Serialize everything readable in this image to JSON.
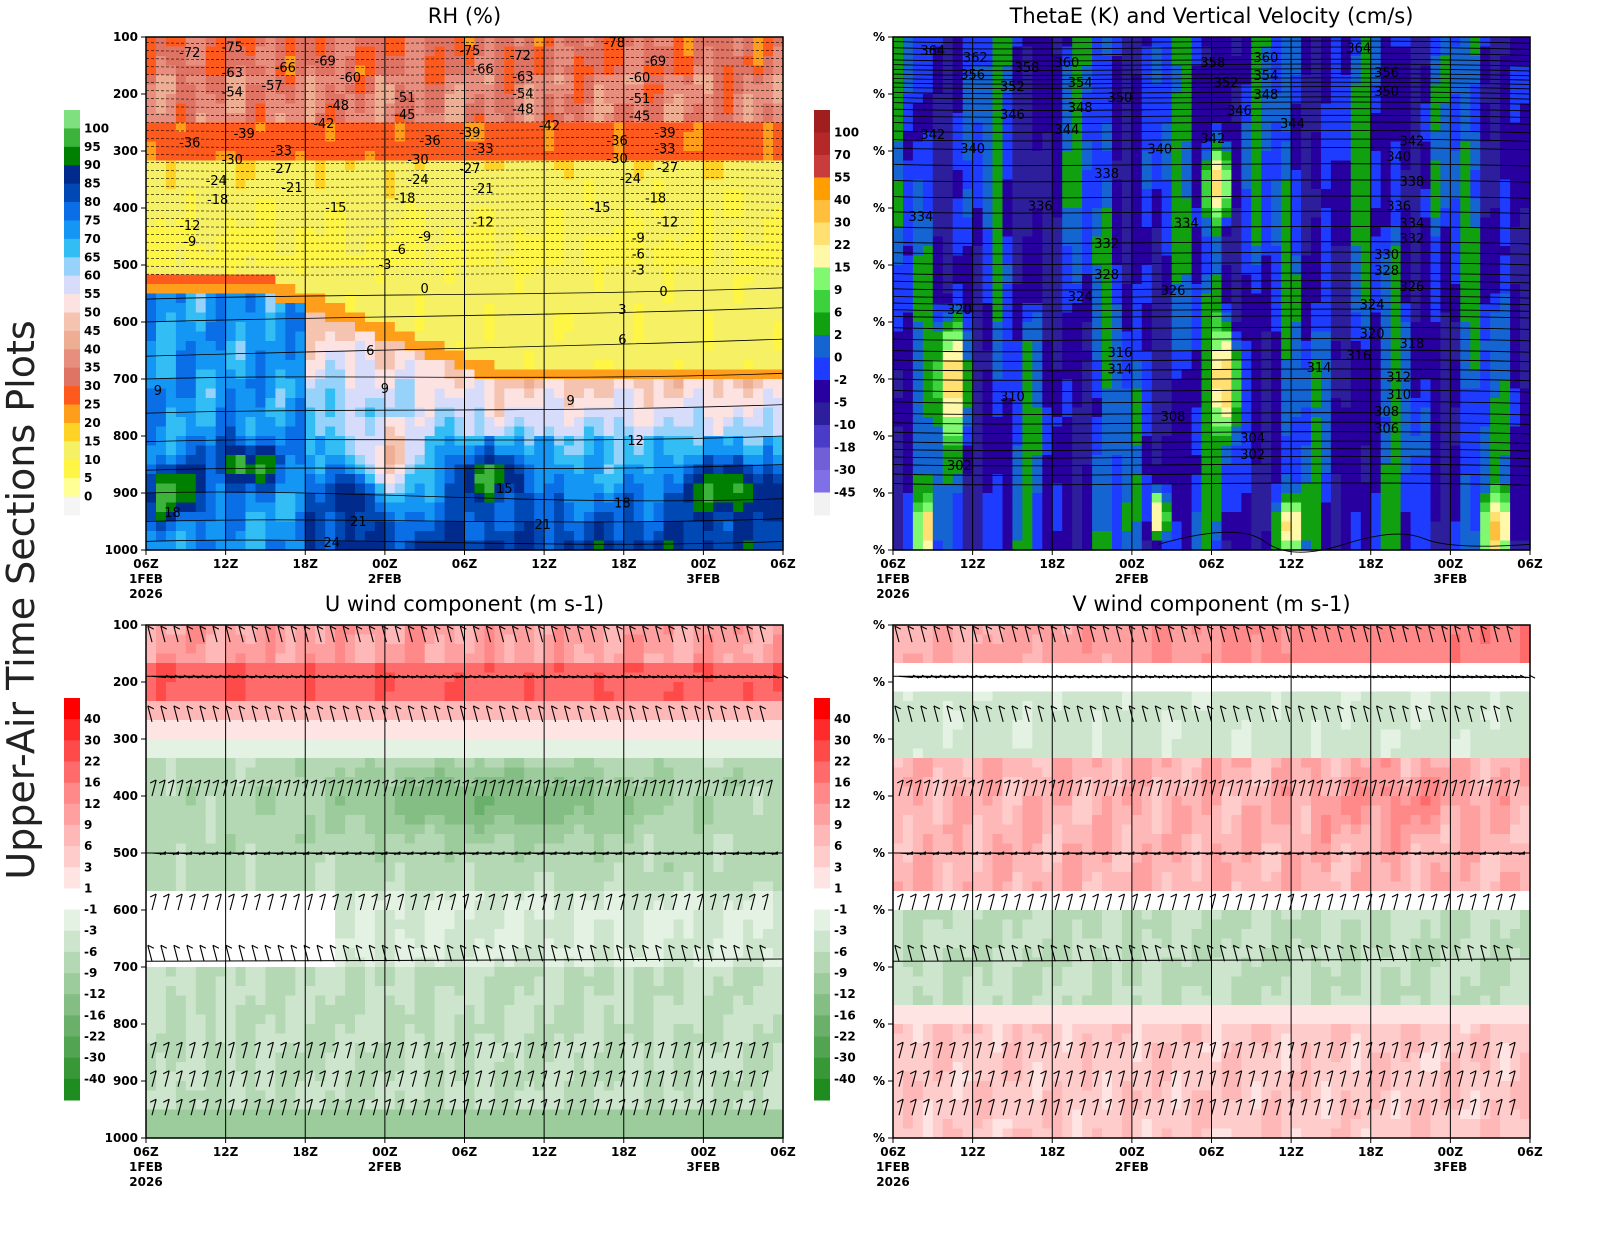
{
  "page_title": "Upper-Air Time Sections Plots",
  "chart_data": [
    {
      "id": "rh",
      "type": "heatmap",
      "title": "RH (%)",
      "ylabel": "",
      "xlabel": "",
      "y_axis": {
        "range": [
          100,
          1000
        ],
        "ticks": [
          "100",
          "200",
          "300",
          "400",
          "500",
          "600",
          "700",
          "800",
          "900",
          "1000"
        ],
        "inverted": true
      },
      "x_axis": {
        "range_hours": [
          0,
          48
        ],
        "ticks": [
          [
            "06Z",
            "1FEB",
            "2026"
          ],
          [
            "12Z"
          ],
          [
            "18Z"
          ],
          [
            "00Z",
            "2FEB"
          ],
          [
            "06Z"
          ],
          [
            "12Z"
          ],
          [
            "18Z"
          ],
          [
            "00Z",
            "3FEB"
          ],
          [
            "06Z"
          ]
        ]
      },
      "colorbar": {
        "labels": [
          "100",
          "95",
          "90",
          "85",
          "80",
          "75",
          "70",
          "65",
          "60",
          "55",
          "50",
          "45",
          "40",
          "35",
          "30",
          "25",
          "20",
          "15",
          "10",
          "5",
          "0"
        ],
        "colors": [
          "#7ee07e",
          "#3cb43c",
          "#008000",
          "#002a8c",
          "#0048b4",
          "#0a6ee6",
          "#1496f5",
          "#32bef5",
          "#96d2fa",
          "#d7dcfa",
          "#fde2e2",
          "#f5c4b0",
          "#edae94",
          "#e88e7e",
          "#e07464",
          "#ff5a1e",
          "#ff9e1a",
          "#ffd226",
          "#f5f064",
          "#fff544",
          "#ffff96",
          "#f5f5f5"
        ]
      },
      "contour_labels": [
        [
          3.3,
          126,
          "-72"
        ],
        [
          6.5,
          117,
          "-75"
        ],
        [
          10.5,
          153,
          "-66"
        ],
        [
          13.5,
          141,
          "-69"
        ],
        [
          6.5,
          161,
          "-63"
        ],
        [
          9.5,
          184,
          "-57"
        ],
        [
          6.5,
          196,
          "-54"
        ],
        [
          15.4,
          170,
          "-60"
        ],
        [
          14.5,
          219,
          "-48"
        ],
        [
          13.4,
          251,
          "-42"
        ],
        [
          19.5,
          205,
          "-51"
        ],
        [
          19.5,
          235,
          "-45"
        ],
        [
          24.4,
          123,
          "-75"
        ],
        [
          28.2,
          132,
          "-72"
        ],
        [
          25.4,
          155,
          "-66"
        ],
        [
          28.4,
          168,
          "-63"
        ],
        [
          28.4,
          198,
          "-54"
        ],
        [
          28.4,
          225,
          "-48"
        ],
        [
          30.4,
          254,
          "-42"
        ],
        [
          35.3,
          109,
          "-78"
        ],
        [
          38.4,
          141,
          "-69"
        ],
        [
          37.2,
          170,
          "-60"
        ],
        [
          37.2,
          207,
          "-51"
        ],
        [
          37.2,
          238,
          "-45"
        ],
        [
          3.3,
          284,
          "-36"
        ],
        [
          7.4,
          268,
          "-39"
        ],
        [
          6.5,
          314,
          "-30"
        ],
        [
          10.2,
          298,
          "-33"
        ],
        [
          10.2,
          330,
          "-27"
        ],
        [
          5.3,
          351,
          "-24"
        ],
        [
          11,
          363,
          "-21"
        ],
        [
          5.4,
          384,
          "-18"
        ],
        [
          14.3,
          398,
          "-15"
        ],
        [
          3.3,
          430,
          "-12"
        ],
        [
          3.3,
          458,
          "-9"
        ],
        [
          21.4,
          281,
          "-36"
        ],
        [
          24.4,
          267,
          "-39"
        ],
        [
          25.4,
          295,
          "-33"
        ],
        [
          20.5,
          314,
          "-30"
        ],
        [
          24.4,
          330,
          "-27"
        ],
        [
          20.5,
          349,
          "-24"
        ],
        [
          25.4,
          365,
          "-21"
        ],
        [
          19.5,
          382,
          "-18"
        ],
        [
          25.4,
          424,
          "-12"
        ],
        [
          21,
          449,
          "-9"
        ],
        [
          19.1,
          472,
          "-6"
        ],
        [
          18,
          498,
          "-3"
        ],
        [
          35.5,
          281,
          "-36"
        ],
        [
          39.1,
          267,
          "-39"
        ],
        [
          39.1,
          295,
          "-33"
        ],
        [
          35.5,
          312,
          "-30"
        ],
        [
          39.3,
          328,
          "-27"
        ],
        [
          36.5,
          347,
          "-24"
        ],
        [
          38.4,
          382,
          "-18"
        ],
        [
          34.2,
          398,
          "-15"
        ],
        [
          39.3,
          424,
          "-12"
        ],
        [
          37.1,
          452,
          "-9"
        ],
        [
          37.1,
          480,
          "-6"
        ],
        [
          37.1,
          508,
          "-3"
        ],
        [
          21,
          540,
          "0"
        ],
        [
          39,
          546,
          "0"
        ],
        [
          35.9,
          577,
          "3"
        ],
        [
          16.9,
          649,
          "6"
        ],
        [
          35.9,
          630,
          "6"
        ],
        [
          0.9,
          719,
          "9"
        ],
        [
          18,
          716,
          "9"
        ],
        [
          32,
          737,
          "9"
        ],
        [
          36.9,
          807,
          "12"
        ],
        [
          27,
          891,
          "15"
        ],
        [
          2,
          933,
          "18"
        ],
        [
          35.9,
          917,
          "18"
        ],
        [
          16,
          949,
          "21"
        ],
        [
          29.9,
          954,
          "21"
        ],
        [
          14,
          986,
          "24"
        ]
      ]
    },
    {
      "id": "thetae",
      "type": "heatmap",
      "title": "ThetaE (K) and Vertical Velocity (cm/s)",
      "y_axis": {
        "ticks": [
          "%",
          "%",
          "%",
          "%",
          "%",
          "%",
          "%",
          "%",
          "%",
          "%"
        ],
        "range": [
          100,
          1000
        ],
        "inverted": true
      },
      "x_axis": {
        "range_hours": [
          0,
          48
        ],
        "ticks": [
          [
            "06Z",
            "1FEB",
            "2026"
          ],
          [
            "12Z"
          ],
          [
            "18Z"
          ],
          [
            "00Z",
            "2FEB"
          ],
          [
            "06Z"
          ],
          [
            "12Z"
          ],
          [
            "18Z"
          ],
          [
            "00Z",
            "3FEB"
          ],
          [
            "06Z"
          ]
        ]
      },
      "colorbar": {
        "labels": [
          "100",
          "70",
          "55",
          "40",
          "30",
          "22",
          "15",
          "9",
          "6",
          "2",
          "0",
          "-2",
          "-5",
          "-10",
          "-18",
          "-30",
          "-45"
        ],
        "colors": [
          "#a01e1e",
          "#b42828",
          "#c83c3c",
          "#ff9e00",
          "#ffbe3c",
          "#ffe070",
          "#fff8a8",
          "#80f870",
          "#3cd23c",
          "#10a010",
          "#1464d2",
          "#1e3cff",
          "#2800a0",
          "#2d1e9b",
          "#4a3cc8",
          "#7060d8",
          "#8070e8",
          "#f2f2f2"
        ]
      },
      "contour_labels": [
        [
          3,
          123,
          "364"
        ],
        [
          6.2,
          135,
          "362"
        ],
        [
          10.1,
          153,
          "358"
        ],
        [
          13.1,
          144,
          "360"
        ],
        [
          6,
          165,
          "356"
        ],
        [
          9,
          186,
          "352"
        ],
        [
          14.1,
          179,
          "354"
        ],
        [
          14.1,
          223,
          "348"
        ],
        [
          17.1,
          205,
          "350"
        ],
        [
          9,
          235,
          "346"
        ],
        [
          13.1,
          261,
          "344"
        ],
        [
          3,
          270,
          "342"
        ],
        [
          6,
          295,
          "340"
        ],
        [
          20.1,
          296,
          "340"
        ],
        [
          16.1,
          339,
          "338"
        ],
        [
          11.1,
          396,
          "336"
        ],
        [
          2.1,
          414,
          "334"
        ],
        [
          22.1,
          425,
          "334"
        ],
        [
          16.1,
          461,
          "332"
        ],
        [
          16.1,
          516,
          "328"
        ],
        [
          21.1,
          544,
          "326"
        ],
        [
          14.1,
          554,
          "324"
        ],
        [
          5,
          577,
          "320"
        ],
        [
          17.1,
          653,
          "316"
        ],
        [
          17.1,
          682,
          "314"
        ],
        [
          9,
          730,
          "310"
        ],
        [
          21.1,
          765,
          "308"
        ],
        [
          27.1,
          803,
          "304"
        ],
        [
          27.1,
          832,
          "302"
        ],
        [
          5,
          851,
          "302"
        ],
        [
          24.1,
          144,
          "358"
        ],
        [
          28.1,
          135,
          "360"
        ],
        [
          25.1,
          179,
          "352"
        ],
        [
          28.1,
          167,
          "354"
        ],
        [
          28.1,
          200,
          "348"
        ],
        [
          26.1,
          228,
          "346"
        ],
        [
          30.1,
          251,
          "344"
        ],
        [
          24.1,
          277,
          "342"
        ],
        [
          35.1,
          118,
          "364"
        ],
        [
          37.2,
          161,
          "356"
        ],
        [
          37.2,
          195,
          "350"
        ],
        [
          39.1,
          282,
          "342"
        ],
        [
          38.1,
          309,
          "340"
        ],
        [
          39.1,
          353,
          "338"
        ],
        [
          38.1,
          396,
          "336"
        ],
        [
          39.1,
          425,
          "334"
        ],
        [
          39.1,
          453,
          "332"
        ],
        [
          37.2,
          481,
          "330"
        ],
        [
          37.2,
          509,
          "328"
        ],
        [
          39.1,
          537,
          "326"
        ],
        [
          36.1,
          568,
          "324"
        ],
        [
          36.1,
          619,
          "320"
        ],
        [
          39.1,
          637,
          "318"
        ],
        [
          35.1,
          658,
          "316"
        ],
        [
          32.1,
          679,
          "314"
        ],
        [
          38.1,
          696,
          "312"
        ],
        [
          38.1,
          726,
          "310"
        ],
        [
          37.2,
          756,
          "308"
        ],
        [
          37.2,
          786,
          "306"
        ]
      ]
    },
    {
      "id": "u",
      "type": "heatmap",
      "title": "U wind component (m s-1)",
      "y_axis": {
        "range": [
          100,
          1000
        ],
        "ticks": [
          "100",
          "200",
          "300",
          "400",
          "500",
          "600",
          "700",
          "800",
          "900",
          "1000"
        ],
        "inverted": true
      },
      "x_axis": {
        "range_hours": [
          0,
          48
        ],
        "ticks": [
          [
            "06Z",
            "1FEB",
            "2026"
          ],
          [
            "12Z"
          ],
          [
            "18Z"
          ],
          [
            "00Z",
            "2FEB"
          ],
          [
            "06Z"
          ],
          [
            "12Z"
          ],
          [
            "18Z"
          ],
          [
            "00Z",
            "3FEB"
          ],
          [
            "06Z"
          ]
        ]
      },
      "colorbar": {
        "labels": [
          "40",
          "30",
          "22",
          "16",
          "12",
          "9",
          "6",
          "3",
          "1",
          "-1",
          "-3",
          "-6",
          "-9",
          "-12",
          "-16",
          "-22",
          "-30",
          "-40"
        ],
        "colors": [
          "#ff0000",
          "#ff2a2a",
          "#ff4a4a",
          "#ff6a6a",
          "#ff8888",
          "#ffa0a0",
          "#ffb8b8",
          "#ffcccc",
          "#ffe4e4",
          "#ffffff",
          "#e4f2e4",
          "#cce5cc",
          "#b4d8b4",
          "#9ccb9c",
          "#84be84",
          "#6ab06a",
          "#52a452",
          "#389838",
          "#1e8c1e"
        ]
      },
      "wind_barb_levels": [
        130,
        190,
        270,
        400,
        500,
        600,
        690,
        860,
        910,
        960
      ]
    },
    {
      "id": "v",
      "type": "heatmap",
      "title": "V wind component (m s-1)",
      "y_axis": {
        "ticks": [
          "%",
          "%",
          "%",
          "%",
          "%",
          "%",
          "%",
          "%",
          "%",
          "%"
        ],
        "range": [
          100,
          1000
        ],
        "inverted": true
      },
      "x_axis": {
        "range_hours": [
          0,
          48
        ],
        "ticks": [
          [
            "06Z",
            "1FEB",
            "2026"
          ],
          [
            "12Z"
          ],
          [
            "18Z"
          ],
          [
            "00Z",
            "2FEB"
          ],
          [
            "06Z"
          ],
          [
            "12Z"
          ],
          [
            "18Z"
          ],
          [
            "00Z",
            "3FEB"
          ],
          [
            "06Z"
          ]
        ]
      },
      "colorbar": {
        "labels": [
          "40",
          "30",
          "22",
          "16",
          "12",
          "9",
          "6",
          "3",
          "1",
          "-1",
          "-3",
          "-6",
          "-9",
          "-12",
          "-16",
          "-22",
          "-30",
          "-40"
        ],
        "colors": [
          "#ff0000",
          "#ff2a2a",
          "#ff4a4a",
          "#ff6a6a",
          "#ff8888",
          "#ffa0a0",
          "#ffb8b8",
          "#ffcccc",
          "#ffe4e4",
          "#ffffff",
          "#e4f2e4",
          "#cce5cc",
          "#b4d8b4",
          "#9ccb9c",
          "#84be84",
          "#6ab06a",
          "#52a452",
          "#389838",
          "#1e8c1e"
        ]
      },
      "wind_barb_levels": [
        130,
        190,
        270,
        400,
        500,
        600,
        690,
        860,
        910,
        960
      ]
    }
  ]
}
